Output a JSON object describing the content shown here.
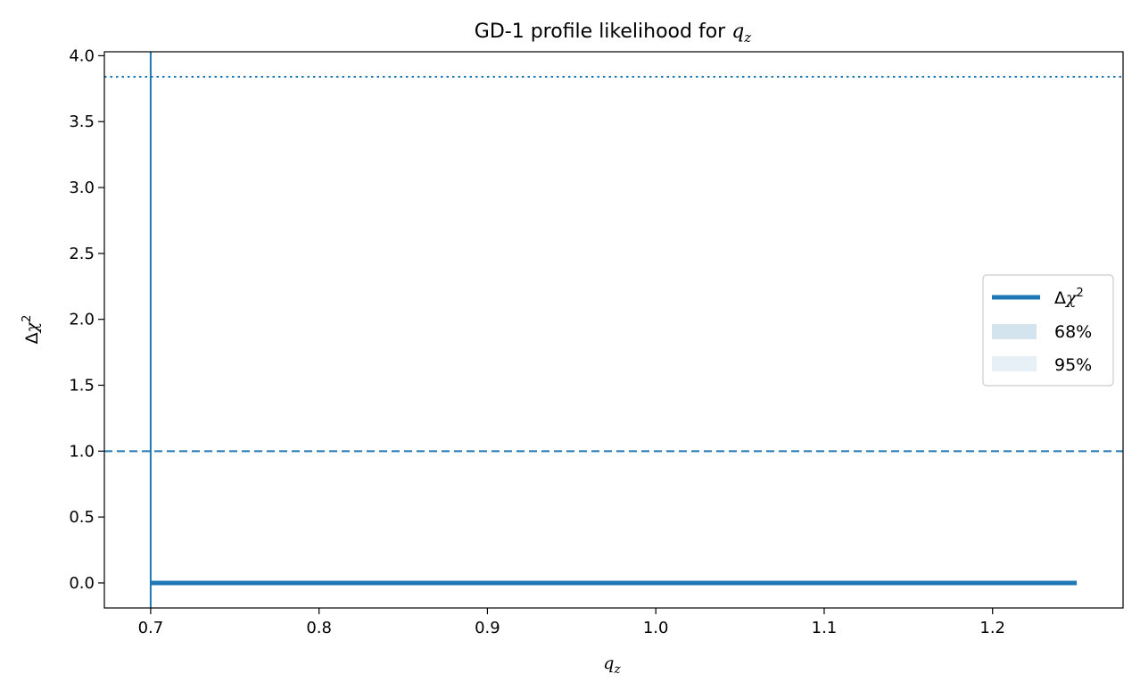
{
  "chart_data": {
    "type": "line",
    "title": {
      "prefix": "GD-1 profile likelihood for ",
      "symbol": "q",
      "subscript": "z"
    },
    "xlabel": {
      "symbol": "q",
      "subscript": "z"
    },
    "ylabel": {
      "prefix": "Δ",
      "symbol": "χ",
      "superscript": "2"
    },
    "xlim": [
      0.6725,
      1.2775
    ],
    "ylim": [
      -0.19,
      4.03
    ],
    "xticks": [
      {
        "value": 0.7,
        "label": "0.7"
      },
      {
        "value": 0.8,
        "label": "0.8"
      },
      {
        "value": 0.9,
        "label": "0.9"
      },
      {
        "value": 1.0,
        "label": "1.0"
      },
      {
        "value": 1.1,
        "label": "1.1"
      },
      {
        "value": 1.2,
        "label": "1.2"
      }
    ],
    "yticks": [
      {
        "value": 0.0,
        "label": "0.0"
      },
      {
        "value": 0.5,
        "label": "0.5"
      },
      {
        "value": 1.0,
        "label": "1.0"
      },
      {
        "value": 1.5,
        "label": "1.5"
      },
      {
        "value": 2.0,
        "label": "2.0"
      },
      {
        "value": 2.5,
        "label": "2.5"
      },
      {
        "value": 3.0,
        "label": "3.0"
      },
      {
        "value": 3.5,
        "label": "3.5"
      },
      {
        "value": 4.0,
        "label": "4.0"
      }
    ],
    "series": [
      {
        "name": "Δχ²",
        "x": [
          0.7,
          0.75,
          0.8,
          0.85,
          0.9,
          0.95,
          1.0,
          1.05,
          1.1,
          1.15,
          1.2,
          1.25
        ],
        "y": [
          0,
          0,
          0,
          0,
          0,
          0,
          0,
          0,
          0,
          0,
          0,
          0
        ],
        "color": "#1f77b4"
      }
    ],
    "hlines": [
      {
        "y": 1.0,
        "style": "dashed",
        "color": "#1f77b4"
      },
      {
        "y": 3.84,
        "style": "dotted",
        "color": "#1f77b4"
      }
    ],
    "vlines": [
      {
        "x": 0.7,
        "style": "solid",
        "color": "#1f77b4"
      }
    ],
    "legend": {
      "placement": "center-right",
      "entries": [
        {
          "label_prefix": "Δ",
          "label_symbol": "χ",
          "label_sup": "2",
          "kind": "line",
          "color": "#1f77b4"
        },
        {
          "label": "68%",
          "kind": "patch",
          "color": "#d3e4ef"
        },
        {
          "label": "95%",
          "kind": "patch",
          "color": "#e8f0f7"
        }
      ]
    },
    "grid": false
  }
}
